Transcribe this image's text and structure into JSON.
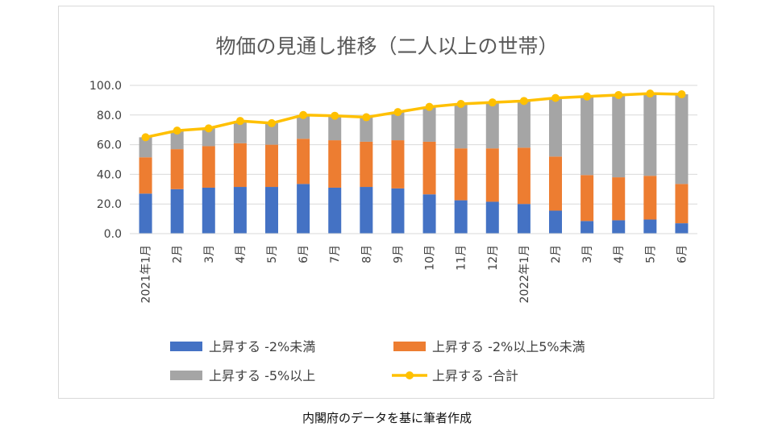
{
  "source_note": "内閣府のデータを基に筆者作成",
  "chart_data": {
    "type": "bar",
    "title": "物価の見通し推移（二人以上の世帯）",
    "categories": [
      "2021年1月",
      "2月",
      "3月",
      "4月",
      "5月",
      "6月",
      "7月",
      "8月",
      "9月",
      "10月",
      "11月",
      "12月",
      "2022年1月",
      "2月",
      "3月",
      "4月",
      "5月",
      "6月"
    ],
    "ylim": [
      0,
      100
    ],
    "yticks": [
      "0.0",
      "20.0",
      "40.0",
      "60.0",
      "80.0",
      "100.0"
    ],
    "grid": true,
    "legend_position": "bottom",
    "series": [
      {
        "name": "上昇する -2%未満",
        "kind": "bar",
        "color": "#4472c4",
        "values": [
          27.0,
          30.0,
          31.0,
          31.5,
          31.5,
          33.5,
          31.0,
          31.5,
          30.5,
          26.5,
          22.5,
          21.5,
          20.0,
          15.5,
          8.5,
          9.0,
          9.5,
          7.0
        ]
      },
      {
        "name": "上昇する -2%以上5%未満",
        "kind": "bar",
        "color": "#ed7d31",
        "values": [
          24.5,
          27.0,
          28.0,
          29.5,
          28.5,
          30.5,
          32.0,
          30.5,
          32.5,
          35.5,
          35.0,
          36.0,
          38.0,
          36.5,
          31.0,
          29.0,
          29.5,
          26.5
        ]
      },
      {
        "name": "上昇する -5%以上",
        "kind": "bar",
        "color": "#a5a5a5",
        "values": [
          13.5,
          12.5,
          12.0,
          15.0,
          14.5,
          16.0,
          16.5,
          16.5,
          19.0,
          23.5,
          30.0,
          31.0,
          31.5,
          39.5,
          53.0,
          55.5,
          55.5,
          60.5
        ]
      },
      {
        "name": "上昇する -合計",
        "kind": "line",
        "color": "#ffc000",
        "values": [
          65.0,
          69.5,
          71.0,
          76.0,
          74.5,
          80.0,
          79.5,
          78.5,
          82.0,
          85.5,
          87.5,
          88.5,
          89.5,
          91.5,
          92.5,
          93.5,
          94.5,
          94.0
        ]
      }
    ]
  }
}
